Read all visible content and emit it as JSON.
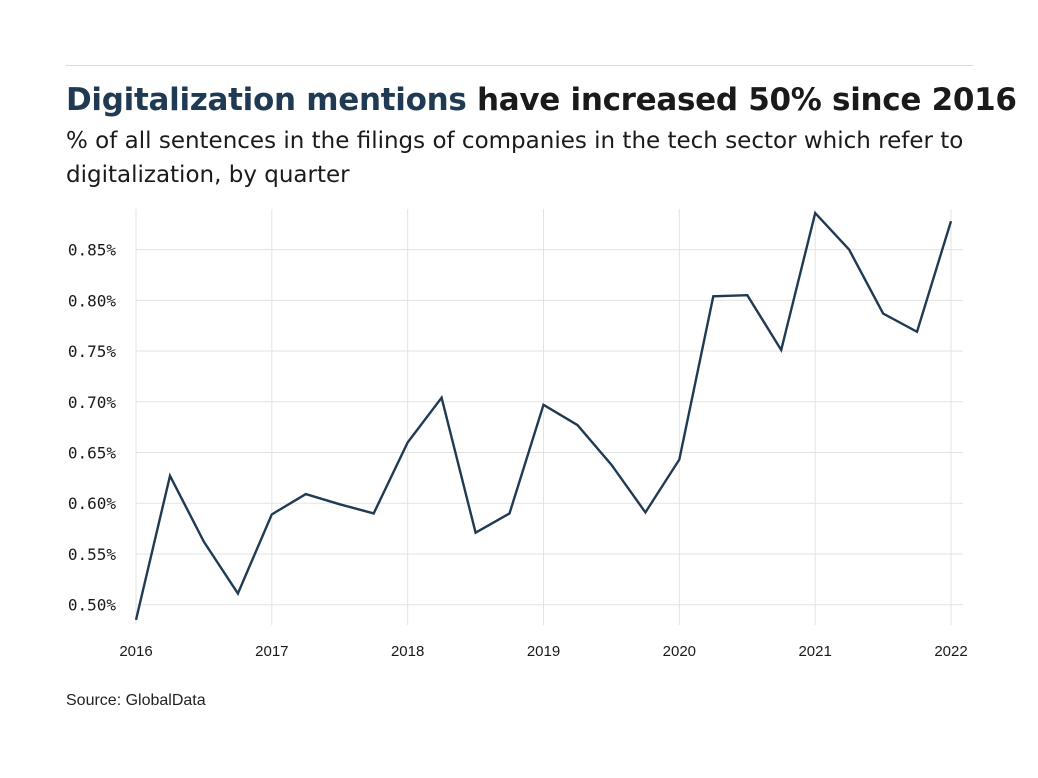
{
  "header": {
    "title_highlight": "Digitalization mentions",
    "title_rest": " have increased 50% since 2016",
    "subtitle": "% of all sentences in the filings of companies in the tech sector which refer to digitalization, by quarter"
  },
  "footer": {
    "source": "Source: GlobalData"
  },
  "colors": {
    "line": "#1f3a52",
    "highlight": "#1f3a52",
    "grid": "#e3e3e3",
    "text": "#1a1a1a"
  },
  "chart_data": {
    "type": "line",
    "title": "Digitalization mentions have increased 50% since 2016",
    "subtitle": "% of all sentences in the filings of companies in the tech sector which refer to digitalization, by quarter",
    "xlabel": "",
    "ylabel": "",
    "x": [
      "2016 Q1",
      "2016 Q2",
      "2016 Q3",
      "2016 Q4",
      "2017 Q1",
      "2017 Q2",
      "2017 Q3",
      "2017 Q4",
      "2018 Q1",
      "2018 Q2",
      "2018 Q3",
      "2018 Q4",
      "2019 Q1",
      "2019 Q2",
      "2019 Q3",
      "2019 Q4",
      "2020 Q1",
      "2020 Q2",
      "2020 Q3",
      "2020 Q4",
      "2021 Q1",
      "2021 Q2",
      "2021 Q3",
      "2021 Q4",
      "2022 Q1"
    ],
    "series": [
      {
        "values": [
          0.485,
          0.627,
          0.562,
          0.511,
          0.589,
          0.609,
          0.599,
          0.59,
          0.66,
          0.704,
          0.571,
          0.59,
          0.697,
          0.677,
          0.638,
          0.591,
          0.643,
          0.804,
          0.805,
          0.751,
          0.886,
          0.85,
          0.787,
          0.769,
          0.878
        ]
      }
    ],
    "x_tick_labels": [
      "2016",
      "2017",
      "2018",
      "2019",
      "2020",
      "2021",
      "2022"
    ],
    "y_ticks": [
      0.5,
      0.55,
      0.6,
      0.65,
      0.7,
      0.75,
      0.8,
      0.85
    ],
    "y_tick_labels": [
      "0.50%",
      "0.55%",
      "0.60%",
      "0.65%",
      "0.70%",
      "0.75%",
      "0.80%",
      "0.85%"
    ],
    "ylim": [
      0.48,
      0.89
    ],
    "grid": true,
    "legend": "none"
  }
}
